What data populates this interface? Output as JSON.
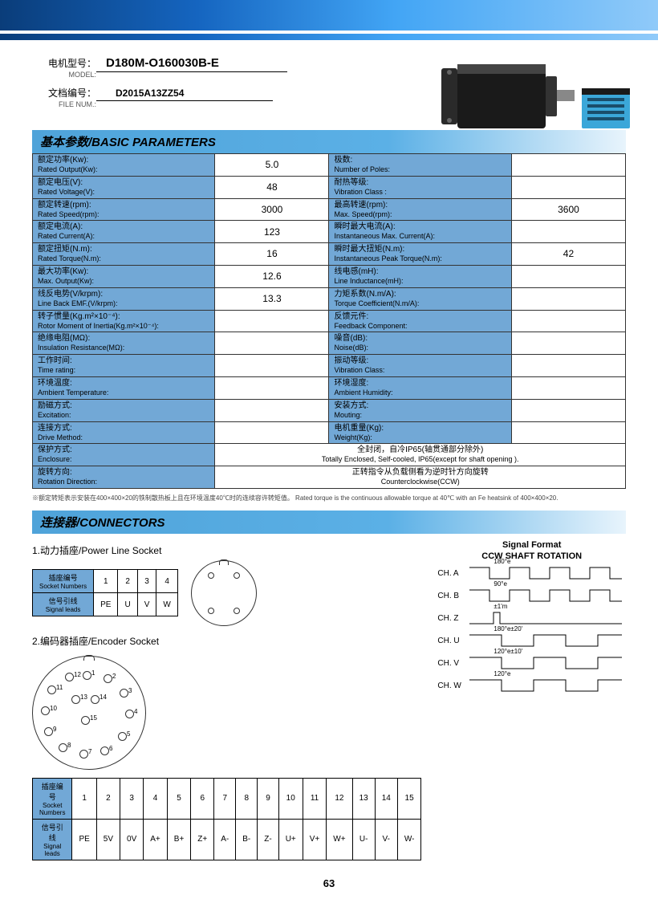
{
  "header": {
    "model_label_zh": "电机型号：",
    "model_label_en": "MODEL:",
    "model_value": "D180M-O160030B-E",
    "file_label_zh": "文档编号：",
    "file_label_en": "FILE NUM.:",
    "file_value": "D2015A13ZZ54"
  },
  "sections": {
    "basic_params_title": "基本参数/BASIC PARAMETERS",
    "connectors_title": "连接器/CONNECTORS"
  },
  "params": [
    {
      "l1z": "额定功率(Kw):",
      "l1e": "Rated Output(Kw):",
      "v1": "5.0",
      "l2z": "极数:",
      "l2e": "Number of Poles:",
      "v2": ""
    },
    {
      "l1z": "额定电压(V):",
      "l1e": "Rated Voltage(V):",
      "v1": "48",
      "l2z": "耐热等级:",
      "l2e": "Vibration Class :",
      "v2": ""
    },
    {
      "l1z": "额定转速(rpm):",
      "l1e": "Rated Speed(rpm):",
      "v1": "3000",
      "l2z": "最高转速(rpm):",
      "l2e": "Max. Speed(rpm):",
      "v2": "3600"
    },
    {
      "l1z": "额定电流(A):",
      "l1e": "Rated Current(A):",
      "v1": "123",
      "l2z": "瞬时最大电流(A):",
      "l2e": "Instantaneous Max. Current(A):",
      "v2": ""
    },
    {
      "l1z": "额定扭矩(N.m):",
      "l1e": "Rated Torque(N.m):",
      "v1": "16",
      "l2z": "瞬时最大扭矩(N.m):",
      "l2e": "Instantaneous Peak Torque(N.m):",
      "v2": "42"
    },
    {
      "l1z": "最大功率(Kw):",
      "l1e": "Max. Output(Kw):",
      "v1": "12.6",
      "l2z": "线电感(mH):",
      "l2e": "Line Inductance(mH):",
      "v2": ""
    },
    {
      "l1z": "线反电势(V/krpm):",
      "l1e": "Line Back EMF.(V/krpm):",
      "v1": "13.3",
      "l2z": "力矩系数(N.m/A):",
      "l2e": "Torque Coefficient(N.m/A):",
      "v2": ""
    },
    {
      "l1z": "转子惯量(Kg.m²×10⁻⁴):",
      "l1e": "Rotor Moment of Inertia(Kg.m²×10⁻⁴):",
      "v1": "",
      "l2z": "反馈元件:",
      "l2e": "Feedback Component:",
      "v2": ""
    },
    {
      "l1z": "绝缘电阻(MΩ):",
      "l1e": "Insulation Resistance(MΩ):",
      "v1": "",
      "l2z": "噪音(dB):",
      "l2e": "Noise(dB):",
      "v2": ""
    },
    {
      "l1z": "工作时间:",
      "l1e": "Time rating:",
      "v1": "",
      "l2z": "振动等级:",
      "l2e": "Vibration Class:",
      "v2": ""
    },
    {
      "l1z": "环境温度:",
      "l1e": "Ambient Temperature:",
      "v1": "",
      "l2z": "环境湿度:",
      "l2e": "Ambient Humidity:",
      "v2": ""
    },
    {
      "l1z": "励磁方式:",
      "l1e": "Excitation:",
      "v1": "",
      "l2z": "安装方式:",
      "l2e": "Mouting:",
      "v2": ""
    },
    {
      "l1z": "连接方式:",
      "l1e": "Drive Method:",
      "v1": "",
      "l2z": "电机重量(Kg):",
      "l2e": "Weight(Kg):",
      "v2": ""
    }
  ],
  "full_rows": [
    {
      "lz": "保护方式:",
      "le": "Enclosure:",
      "vz": "全封闭，自冷IP65(轴贯通部分除外)",
      "ve": "Totally Enclosed, Self-cooled, IP65(except for shaft opening )."
    },
    {
      "lz": "旋转方向:",
      "le": "Rotation Direction:",
      "vz": "正转指令从负载侧看为逆时针方向旋转",
      "ve": "Counterclockwise(CCW)"
    }
  ],
  "footnote": "※额定转矩表示安装在400×400×20的铁制散热板上且在环境温度40℃时的连续容许转矩值。 Rated torque is the continuous allowable torque at 40℃ with an Fe heatsink of 400×400×20.",
  "connectors": {
    "power_title": "1.动力插座/Power Line Socket",
    "encoder_title": "2.编码器插座/Encoder Socket",
    "socket_num_zh": "插座编号",
    "socket_num_en": "Socket Numbers",
    "signal_zh": "信号引线",
    "signal_en": "Signal leads",
    "power_nums": [
      "1",
      "2",
      "3",
      "4"
    ],
    "power_sigs": [
      "PE",
      "U",
      "V",
      "W"
    ],
    "enc_nums": [
      "1",
      "2",
      "3",
      "4",
      "5",
      "6",
      "7",
      "8",
      "9",
      "10",
      "11",
      "12",
      "13",
      "14",
      "15"
    ],
    "enc_sigs": [
      "PE",
      "5V",
      "0V",
      "A+",
      "B+",
      "Z+",
      "A-",
      "B-",
      "Z-",
      "U+",
      "V+",
      "W+",
      "U-",
      "V-",
      "W-"
    ]
  },
  "signal": {
    "title1": "Signal Format",
    "title2": "CCW SHAFT ROTATION",
    "channels": [
      "CH. A",
      "CH. B",
      "CH. Z",
      "CH. U",
      "CH. V",
      "CH. W"
    ],
    "annot": {
      "a": "180°e",
      "b": "90°e",
      "b2": "180°e",
      "z": "±1'm",
      "u": "180°e±20'",
      "v": "120°e±10'",
      "w": "120°e"
    }
  },
  "page_number": "63",
  "colors": {
    "header_blue": "#72a8d6",
    "title_gradient_start": "#4fa3d9"
  }
}
